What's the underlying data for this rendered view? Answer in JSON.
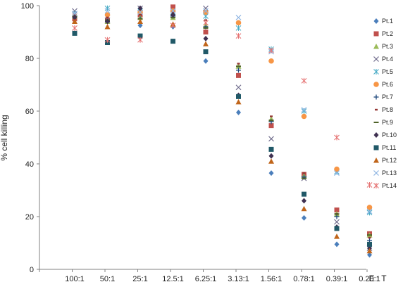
{
  "chart_data": {
    "type": "scatter",
    "title": "",
    "xlabel": "E : T",
    "ylabel": "% cell killing",
    "ylim": [
      0,
      100
    ],
    "yticks": [
      0,
      20,
      40,
      60,
      80,
      100
    ],
    "grid": false,
    "legend_position": "right",
    "categories": [
      "100:1",
      "50:1",
      "25:1",
      "12.5:1",
      "6.25:1",
      "3.13:1",
      "1.56:1",
      "0.78:1",
      "0.39:1",
      "0.20:1"
    ],
    "series": [
      {
        "name": "Pt.1",
        "marker": "diamond",
        "color": "#4a7ebb",
        "values": [
          96.5,
          94.5,
          92.5,
          92,
          79,
          59.5,
          36.5,
          19.5,
          9.5,
          5.5
        ]
      },
      {
        "name": "Pt.2",
        "marker": "square",
        "color": "#c0504d",
        "values": [
          95,
          94.5,
          96.5,
          99.5,
          90,
          73.5,
          54.5,
          36,
          22.5,
          13.5
        ]
      },
      {
        "name": "Pt.3",
        "marker": "triangle",
        "color": "#9bbb59",
        "values": [
          96,
          94,
          95.5,
          95.5,
          92.5,
          77,
          57,
          35.5,
          21,
          13
        ]
      },
      {
        "name": "Pt.4",
        "marker": "x",
        "color": "#6e6a8b",
        "values": [
          98,
          94.5,
          99,
          97,
          99,
          69,
          49.5,
          34.5,
          18,
          8
        ]
      },
      {
        "name": "Pt.5",
        "marker": "star",
        "color": "#4bacc6",
        "values": [
          97,
          99,
          98,
          97.5,
          96,
          91.5,
          83.5,
          60,
          37,
          21.5
        ]
      },
      {
        "name": "Pt.6",
        "marker": "circle",
        "color": "#f79646",
        "values": [
          96,
          96.5,
          97.5,
          98,
          97.5,
          93.5,
          79,
          58,
          38,
          23.5
        ]
      },
      {
        "name": "Pt.7",
        "marker": "plus",
        "color": "#1f497d",
        "values": [
          95.5,
          94,
          95,
          96,
          92,
          75.5,
          56,
          35,
          20,
          11
        ]
      },
      {
        "name": "Pt.8",
        "marker": "dash",
        "color": "#943634",
        "values": [
          96.5,
          95.5,
          96.5,
          97.5,
          94.5,
          78,
          58,
          36.5,
          21,
          12
        ]
      },
      {
        "name": "Pt.9",
        "marker": "longdash",
        "color": "#4f6228",
        "values": [
          96,
          94.5,
          95,
          95.5,
          91.5,
          77,
          56.5,
          34.5,
          21,
          13
        ]
      },
      {
        "name": "Pt.10",
        "marker": "diamond",
        "color": "#3f3151",
        "values": [
          95.5,
          94,
          99,
          96.5,
          87.5,
          66,
          43,
          26,
          16,
          8
        ]
      },
      {
        "name": "Pt.11",
        "marker": "square",
        "color": "#215968",
        "values": [
          89.5,
          86,
          88.5,
          86.5,
          82.5,
          65.5,
          45.5,
          28.5,
          15.5,
          9.5
        ]
      },
      {
        "name": "Pt.12",
        "marker": "triangle",
        "color": "#c0651a",
        "values": [
          94,
          92,
          94,
          93,
          85.5,
          63.5,
          41,
          23,
          12.5,
          7
        ]
      },
      {
        "name": "Pt.13",
        "marker": "x",
        "color": "#8db3e2",
        "values": [
          97,
          98,
          97.5,
          98,
          98,
          95.5,
          82.5,
          60.5,
          36.5,
          22
        ]
      },
      {
        "name": "Pt.14",
        "marker": "star",
        "color": "#e57373",
        "values": [
          91.5,
          87,
          87,
          92.5,
          93.5,
          88.5,
          83,
          71.5,
          50,
          32
        ]
      }
    ]
  }
}
